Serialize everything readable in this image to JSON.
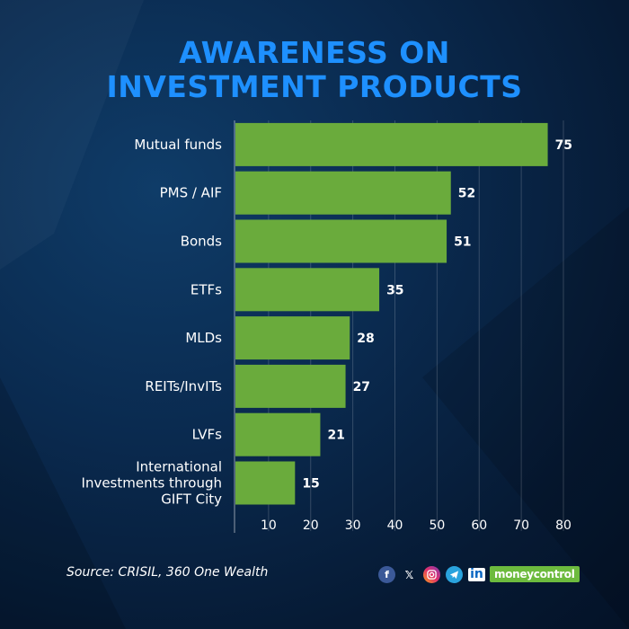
{
  "title_lines": [
    "AWARENESS ON",
    "INVESTMENT PRODUCTS"
  ],
  "source": "Source: CRISIL, 360 One Wealth",
  "brand": "moneycontrol",
  "social_icons": [
    "facebook-icon",
    "x-icon",
    "instagram-icon",
    "telegram-icon",
    "linkedin-icon"
  ],
  "colors": {
    "bar": "#6aab3c",
    "title": "#1e90ff",
    "background": "#0a2a4f"
  },
  "chart_data": {
    "type": "bar",
    "orientation": "horizontal",
    "categories": [
      "Mutual funds",
      "PMS / AIF",
      "Bonds",
      "ETFs",
      "MLDs",
      "REITs/InvITs",
      "LVFs",
      "International\nInvestments through\nGIFT City"
    ],
    "values": [
      75,
      52,
      51,
      35,
      28,
      27,
      21,
      15
    ],
    "xticks": [
      10,
      20,
      30,
      40,
      50,
      60,
      70,
      80
    ],
    "xlim": [
      0,
      80
    ],
    "grid": true,
    "legend": "none"
  }
}
